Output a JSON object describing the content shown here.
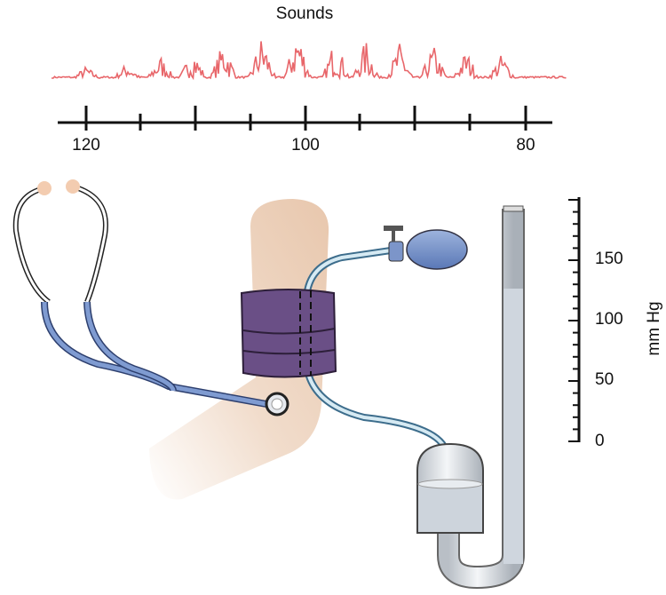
{
  "sounds_panel": {
    "title": "Sounds",
    "axis_labels": [
      "120",
      "100",
      "80"
    ]
  },
  "manometer": {
    "scale_labels": [
      "150",
      "100",
      "50",
      "0"
    ],
    "unit": "mm Hg"
  }
}
